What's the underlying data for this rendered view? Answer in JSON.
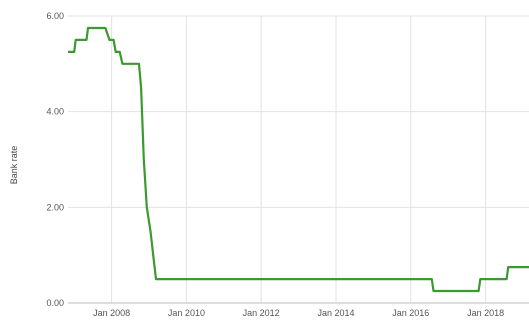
{
  "chart_data": {
    "type": "line",
    "ylabel": "Bank rate",
    "xlabel": "",
    "ylim": [
      0,
      6
    ],
    "xlim": [
      "2006-11-01",
      "2019-03-01"
    ],
    "y_ticks": [
      {
        "value": 0,
        "label": "0.00"
      },
      {
        "value": 2,
        "label": "2.00"
      },
      {
        "value": 4,
        "label": "4.00"
      },
      {
        "value": 6,
        "label": "6.00"
      }
    ],
    "x_ticks": [
      {
        "value": "2008-01-01",
        "label": "Jan 2008"
      },
      {
        "value": "2010-01-01",
        "label": "Jan 2010"
      },
      {
        "value": "2012-01-01",
        "label": "Jan 2012"
      },
      {
        "value": "2014-01-01",
        "label": "Jan 2014"
      },
      {
        "value": "2016-01-01",
        "label": "Jan 2016"
      },
      {
        "value": "2018-01-01",
        "label": "Jan 2018"
      }
    ],
    "grid": true,
    "line_color": "#3a9a2f",
    "series": [
      {
        "points": [
          {
            "x": "2006-11-01",
            "y": 5.25
          },
          {
            "x": "2007-01-01",
            "y": 5.25
          },
          {
            "x": "2007-01-15",
            "y": 5.5
          },
          {
            "x": "2007-05-01",
            "y": 5.5
          },
          {
            "x": "2007-05-15",
            "y": 5.75
          },
          {
            "x": "2007-11-01",
            "y": 5.75
          },
          {
            "x": "2007-12-10",
            "y": 5.5
          },
          {
            "x": "2008-01-20",
            "y": 5.5
          },
          {
            "x": "2008-02-10",
            "y": 5.25
          },
          {
            "x": "2008-03-20",
            "y": 5.25
          },
          {
            "x": "2008-04-15",
            "y": 5.0
          },
          {
            "x": "2008-09-25",
            "y": 5.0
          },
          {
            "x": "2008-10-15",
            "y": 4.5
          },
          {
            "x": "2008-11-10",
            "y": 3.0
          },
          {
            "x": "2008-12-10",
            "y": 2.0
          },
          {
            "x": "2009-01-15",
            "y": 1.5
          },
          {
            "x": "2009-02-10",
            "y": 1.0
          },
          {
            "x": "2009-03-10",
            "y": 0.5
          },
          {
            "x": "2016-07-25",
            "y": 0.5
          },
          {
            "x": "2016-08-10",
            "y": 0.25
          },
          {
            "x": "2017-10-25",
            "y": 0.25
          },
          {
            "x": "2017-11-10",
            "y": 0.5
          },
          {
            "x": "2018-07-25",
            "y": 0.5
          },
          {
            "x": "2018-08-10",
            "y": 0.75
          },
          {
            "x": "2019-03-01",
            "y": 0.75
          }
        ]
      }
    ]
  }
}
